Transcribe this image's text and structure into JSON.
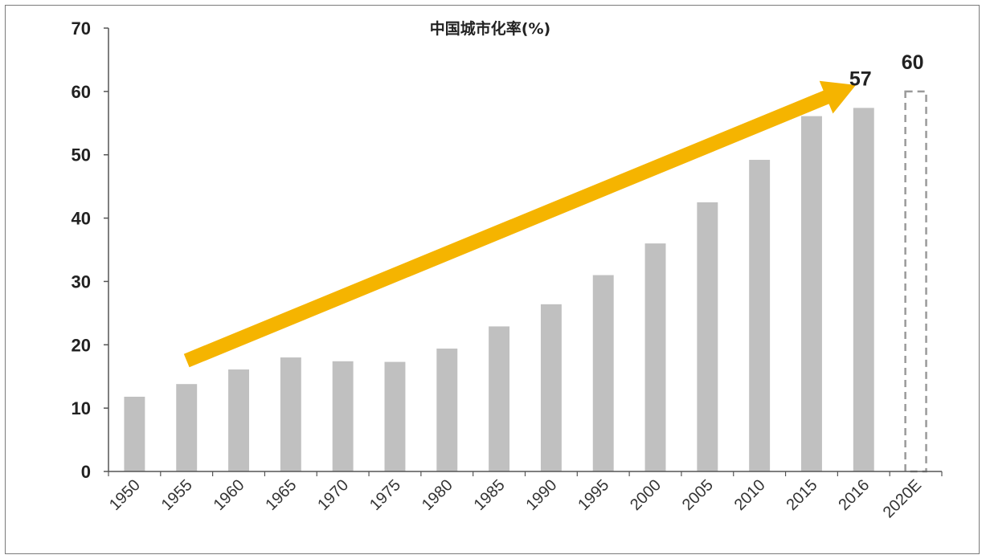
{
  "chart_data": {
    "type": "bar",
    "title": "中国城市化率(%)",
    "categories": [
      "1950",
      "1955",
      "1960",
      "1965",
      "1970",
      "1975",
      "1980",
      "1985",
      "1990",
      "1995",
      "2000",
      "2005",
      "2010",
      "2015",
      "2016",
      "2020E"
    ],
    "values": [
      11.8,
      13.8,
      16.1,
      18.0,
      17.4,
      17.3,
      19.4,
      22.9,
      26.4,
      31.0,
      36.0,
      42.5,
      49.2,
      56.1,
      57.4,
      60
    ],
    "projected": [
      false,
      false,
      false,
      false,
      false,
      false,
      false,
      false,
      false,
      false,
      false,
      false,
      false,
      false,
      false,
      true
    ],
    "data_labels": [
      {
        "category": "2016",
        "text": "57"
      },
      {
        "category": "2020E",
        "text": "60"
      }
    ],
    "xlabel": "",
    "ylabel": "",
    "ylim": [
      0,
      70
    ],
    "yticks": [
      "0",
      "10",
      "20",
      "30",
      "40",
      "50",
      "60",
      "70"
    ],
    "grid": false,
    "legend": "none",
    "annotation": {
      "type": "trend-arrow",
      "from_category": "1955",
      "to_category": "2016",
      "from_value": 17.5,
      "to_value": 60,
      "color": "#f5b400"
    },
    "colors": {
      "bar": "#c0c0c0",
      "projected_bar_stroke": "#9a9a9a",
      "arrow": "#f5b400",
      "axis": "#555555"
    }
  }
}
